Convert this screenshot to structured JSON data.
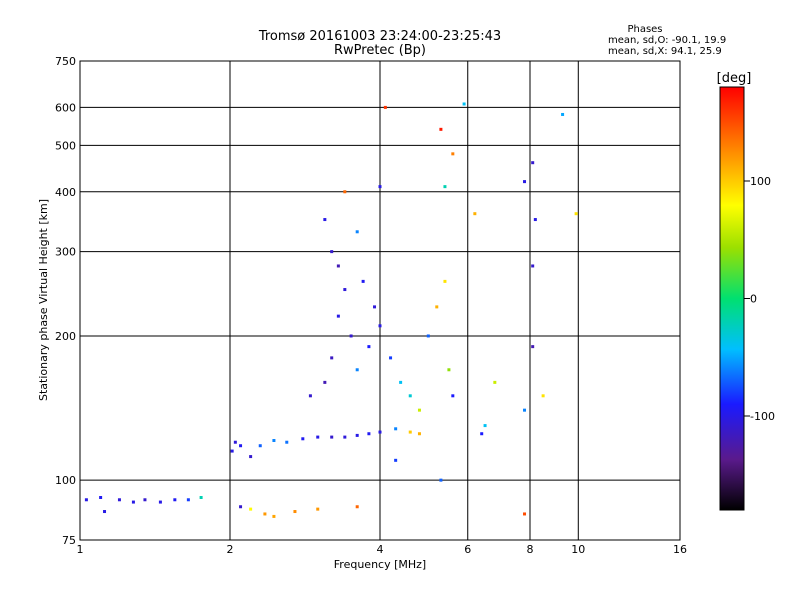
{
  "chart_data": {
    "type": "scatter",
    "title": "Tromsø 20161003 23:24:00-23:25:43",
    "subtitle": "RwPretec (Bp)",
    "xlabel": "Frequency [MHz]",
    "ylabel": "Stationary phase Virtual Height [km]",
    "x_scale": "log",
    "y_scale": "log",
    "xlim": [
      1,
      16
    ],
    "ylim": [
      75,
      750
    ],
    "x_ticks": [
      "1",
      "2",
      "4",
      "6",
      "8",
      "10",
      "16"
    ],
    "y_ticks": [
      "750",
      "600",
      "500",
      "400",
      "300",
      "200",
      "100",
      "75"
    ],
    "grid": true,
    "phase_stats": {
      "heading": "Phases",
      "o_line": "mean, sd,O: -90.1, 19.9",
      "x_line": "mean, sd,X:  94.1, 25.9"
    },
    "colorbar": {
      "label": "[deg]",
      "range": [
        -180,
        180
      ],
      "ticks": [
        "100",
        "0",
        "-100"
      ]
    },
    "series": [
      {
        "points": [
          {
            "x": 1.03,
            "y": 91,
            "phase": -100
          },
          {
            "x": 1.1,
            "y": 92,
            "phase": -95
          },
          {
            "x": 1.2,
            "y": 91,
            "phase": -105
          },
          {
            "x": 1.28,
            "y": 90,
            "phase": -100
          },
          {
            "x": 1.35,
            "y": 91,
            "phase": -110
          },
          {
            "x": 1.45,
            "y": 90,
            "phase": -100
          },
          {
            "x": 1.55,
            "y": 91,
            "phase": -95
          },
          {
            "x": 1.12,
            "y": 86,
            "phase": -100
          },
          {
            "x": 1.65,
            "y": 91,
            "phase": -80
          },
          {
            "x": 1.75,
            "y": 92,
            "phase": -20
          },
          {
            "x": 2.02,
            "y": 115,
            "phase": -100
          },
          {
            "x": 2.05,
            "y": 120,
            "phase": -105
          },
          {
            "x": 2.1,
            "y": 118,
            "phase": -95
          },
          {
            "x": 2.2,
            "y": 112,
            "phase": -110
          },
          {
            "x": 2.3,
            "y": 118,
            "phase": -70
          },
          {
            "x": 2.45,
            "y": 121,
            "phase": -60
          },
          {
            "x": 2.6,
            "y": 120,
            "phase": -65
          },
          {
            "x": 2.8,
            "y": 122,
            "phase": -95
          },
          {
            "x": 3.0,
            "y": 123,
            "phase": -100
          },
          {
            "x": 3.2,
            "y": 123,
            "phase": -110
          },
          {
            "x": 3.4,
            "y": 123,
            "phase": -105
          },
          {
            "x": 3.6,
            "y": 124,
            "phase": -100
          },
          {
            "x": 3.8,
            "y": 125,
            "phase": -95
          },
          {
            "x": 4.0,
            "y": 126,
            "phase": -100
          },
          {
            "x": 4.3,
            "y": 128,
            "phase": -60
          },
          {
            "x": 4.6,
            "y": 126,
            "phase": 100
          },
          {
            "x": 4.8,
            "y": 125,
            "phase": 110
          },
          {
            "x": 2.35,
            "y": 85,
            "phase": 120
          },
          {
            "x": 2.45,
            "y": 84,
            "phase": 115
          },
          {
            "x": 2.2,
            "y": 87,
            "phase": 80
          },
          {
            "x": 2.1,
            "y": 88,
            "phase": -110
          },
          {
            "x": 2.7,
            "y": 86,
            "phase": 125
          },
          {
            "x": 3.0,
            "y": 87,
            "phase": 120
          },
          {
            "x": 3.6,
            "y": 88,
            "phase": 140
          },
          {
            "x": 3.2,
            "y": 300,
            "phase": -110
          },
          {
            "x": 3.3,
            "y": 280,
            "phase": -120
          },
          {
            "x": 3.4,
            "y": 250,
            "phase": -105
          },
          {
            "x": 3.3,
            "y": 220,
            "phase": -100
          },
          {
            "x": 3.5,
            "y": 200,
            "phase": -110
          },
          {
            "x": 3.2,
            "y": 180,
            "phase": -115
          },
          {
            "x": 3.1,
            "y": 160,
            "phase": -120
          },
          {
            "x": 2.9,
            "y": 150,
            "phase": -110
          },
          {
            "x": 3.6,
            "y": 170,
            "phase": -60
          },
          {
            "x": 3.8,
            "y": 190,
            "phase": -90
          },
          {
            "x": 3.9,
            "y": 230,
            "phase": -105
          },
          {
            "x": 3.7,
            "y": 260,
            "phase": -95
          },
          {
            "x": 4.0,
            "y": 210,
            "phase": -100
          },
          {
            "x": 4.2,
            "y": 180,
            "phase": -80
          },
          {
            "x": 4.4,
            "y": 160,
            "phase": -40
          },
          {
            "x": 4.6,
            "y": 150,
            "phase": -30
          },
          {
            "x": 4.8,
            "y": 140,
            "phase": 60
          },
          {
            "x": 5.0,
            "y": 200,
            "phase": -70
          },
          {
            "x": 5.2,
            "y": 230,
            "phase": 110
          },
          {
            "x": 5.4,
            "y": 260,
            "phase": 90
          },
          {
            "x": 5.6,
            "y": 150,
            "phase": -90
          },
          {
            "x": 5.5,
            "y": 170,
            "phase": 40
          },
          {
            "x": 3.4,
            "y": 400,
            "phase": 140
          },
          {
            "x": 3.1,
            "y": 350,
            "phase": -100
          },
          {
            "x": 3.6,
            "y": 330,
            "phase": -60
          },
          {
            "x": 4.1,
            "y": 600,
            "phase": 160
          },
          {
            "x": 4.0,
            "y": 410,
            "phase": -100
          },
          {
            "x": 5.3,
            "y": 540,
            "phase": 170
          },
          {
            "x": 5.6,
            "y": 480,
            "phase": 130
          },
          {
            "x": 5.4,
            "y": 410,
            "phase": -20
          },
          {
            "x": 5.9,
            "y": 610,
            "phase": -40
          },
          {
            "x": 6.2,
            "y": 360,
            "phase": 110
          },
          {
            "x": 6.5,
            "y": 130,
            "phase": -40
          },
          {
            "x": 6.8,
            "y": 160,
            "phase": 60
          },
          {
            "x": 7.8,
            "y": 140,
            "phase": -60
          },
          {
            "x": 7.8,
            "y": 420,
            "phase": -100
          },
          {
            "x": 8.1,
            "y": 460,
            "phase": -110
          },
          {
            "x": 8.2,
            "y": 350,
            "phase": -100
          },
          {
            "x": 8.1,
            "y": 280,
            "phase": -110
          },
          {
            "x": 8.1,
            "y": 190,
            "phase": -120
          },
          {
            "x": 8.5,
            "y": 150,
            "phase": 90
          },
          {
            "x": 9.3,
            "y": 580,
            "phase": -50
          },
          {
            "x": 9.9,
            "y": 360,
            "phase": 90
          },
          {
            "x": 7.8,
            "y": 85,
            "phase": 150
          },
          {
            "x": 4.3,
            "y": 110,
            "phase": -80
          },
          {
            "x": 5.3,
            "y": 100,
            "phase": -70
          },
          {
            "x": 6.4,
            "y": 125,
            "phase": -90
          }
        ]
      }
    ]
  }
}
